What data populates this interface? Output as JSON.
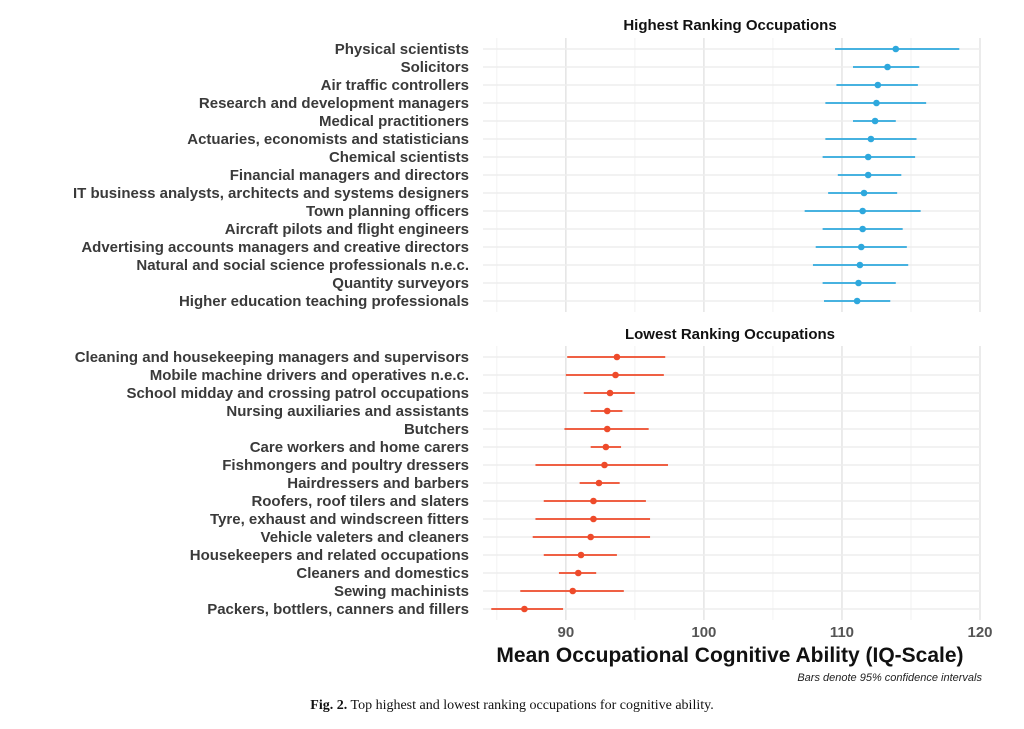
{
  "chart_data": [
    {
      "type": "scatter",
      "title": "Highest Ranking Occupations",
      "color": "#2ea8dd",
      "xlim": [
        84,
        120
      ],
      "categories": [
        "Physical scientists",
        "Solicitors",
        "Air traffic controllers",
        "Research and development managers",
        "Medical practitioners",
        "Actuaries, economists and statisticians",
        "Chemical scientists",
        "Financial managers and directors",
        "IT business analysts, architects and systems designers",
        "Town planning officers",
        "Aircraft pilots and flight engineers",
        "Advertising accounts managers and creative directors",
        "Natural and social science professionals n.e.c.",
        "Quantity surveyors",
        "Higher education teaching professionals"
      ],
      "means": [
        113.9,
        113.3,
        112.6,
        112.5,
        112.4,
        112.1,
        111.9,
        111.9,
        111.6,
        111.5,
        111.5,
        111.4,
        111.3,
        111.2,
        111.1
      ],
      "lower": [
        109.5,
        110.8,
        109.6,
        108.8,
        110.8,
        108.8,
        108.6,
        109.7,
        109.0,
        107.3,
        108.6,
        108.1,
        107.9,
        108.6,
        108.7
      ],
      "upper": [
        118.5,
        115.6,
        115.5,
        116.1,
        113.9,
        115.4,
        115.3,
        114.3,
        114.0,
        115.7,
        114.4,
        114.7,
        114.8,
        113.9,
        113.5
      ]
    },
    {
      "type": "scatter",
      "title": "Lowest Ranking Occupations",
      "color": "#ee4b2b",
      "xlim": [
        84,
        120
      ],
      "categories": [
        "Cleaning and housekeeping managers and supervisors",
        "Mobile machine drivers and operatives n.e.c.",
        "School midday and crossing patrol occupations",
        "Nursing auxiliaries and assistants",
        "Butchers",
        "Care workers and home carers",
        "Fishmongers and poultry dressers",
        "Hairdressers and barbers",
        "Roofers, roof tilers and slaters",
        "Tyre, exhaust and windscreen fitters",
        "Vehicle valeters and cleaners",
        "Housekeepers and related occupations",
        "Cleaners and domestics",
        "Sewing machinists",
        "Packers, bottlers, canners and fillers"
      ],
      "means": [
        93.7,
        93.6,
        93.2,
        93.0,
        93.0,
        92.9,
        92.8,
        92.4,
        92.0,
        92.0,
        91.8,
        91.1,
        90.9,
        90.5,
        87.0
      ],
      "lower": [
        90.1,
        90.0,
        91.3,
        91.8,
        89.9,
        91.8,
        87.8,
        91.0,
        88.4,
        87.8,
        87.6,
        88.4,
        89.5,
        86.7,
        84.6
      ],
      "upper": [
        97.2,
        97.1,
        95.0,
        94.1,
        96.0,
        94.0,
        97.4,
        93.9,
        95.8,
        96.1,
        96.1,
        93.7,
        92.2,
        94.2,
        89.8
      ]
    }
  ],
  "x_axis": {
    "ticks": [
      90,
      100,
      110,
      120
    ],
    "tick_labels": [
      "90",
      "100",
      "110",
      "120"
    ],
    "label": "Mean Occupational Cognitive Ability (IQ-Scale)"
  },
  "note": "Bars denote 95% confidence intervals",
  "caption": {
    "label": "Fig. 2.",
    "text": "Top highest and lowest ranking occupations for cognitive ability."
  },
  "grid": true
}
